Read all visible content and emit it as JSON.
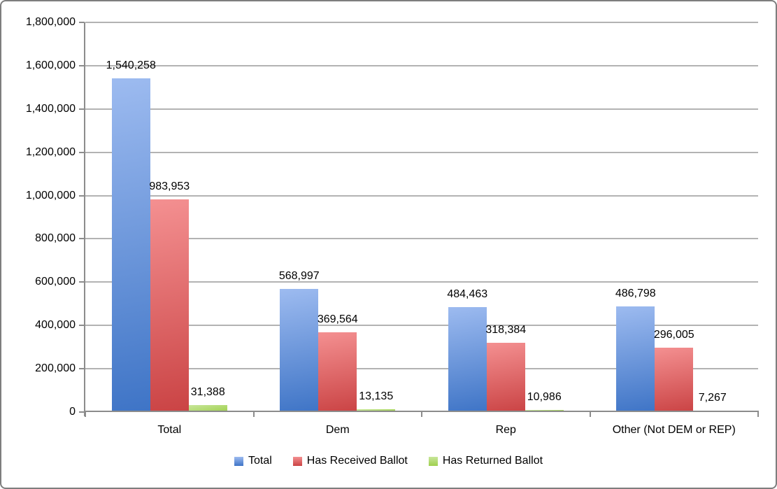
{
  "window": {
    "background": "#FFFFFF",
    "border_color": "#7E7E7E"
  },
  "chart_data": {
    "type": "bar",
    "title": "",
    "xlabel": "",
    "ylabel": "",
    "categories": [
      "Total",
      "Dem",
      "Rep",
      "Other (Not DEM or REP)"
    ],
    "series": [
      {
        "name": "Total",
        "values": [
          1540258,
          568997,
          484463,
          486798
        ],
        "data_labels": [
          "1,540,258",
          "568,997",
          "484,463",
          "486,798"
        ],
        "gradient_top": "#9DBBF0",
        "gradient_bottom": "#3E74C6"
      },
      {
        "name": "Has Received Ballot",
        "values": [
          983953,
          369564,
          318384,
          296005
        ],
        "data_labels": [
          "983,953",
          "369,564",
          "318,384",
          "296,005"
        ],
        "gradient_top": "#F49091",
        "gradient_bottom": "#CA4344"
      },
      {
        "name": "Has Returned Ballot",
        "values": [
          31388,
          13135,
          10986,
          7267
        ],
        "data_labels": [
          "31,388",
          "13,135",
          "10,986",
          "7,267"
        ],
        "gradient_top": "#C8E69A",
        "gradient_bottom": "#9FD04E"
      }
    ],
    "ylim": [
      0,
      1800000
    ],
    "ytick_step": 200000,
    "ytick_labels": [
      "0",
      "200,000",
      "400,000",
      "600,000",
      "800,000",
      "1,000,000",
      "1,200,000",
      "1,400,000",
      "1,600,000",
      "1,800,000"
    ],
    "grid": true,
    "legend_position": "bottom",
    "legend_entries": [
      "Total",
      "Has Received Ballot",
      "Has Returned Ballot"
    ],
    "gridline_color": "#B3B3B3",
    "axis_color": "#8C8C8C",
    "label_color": "#000000"
  }
}
